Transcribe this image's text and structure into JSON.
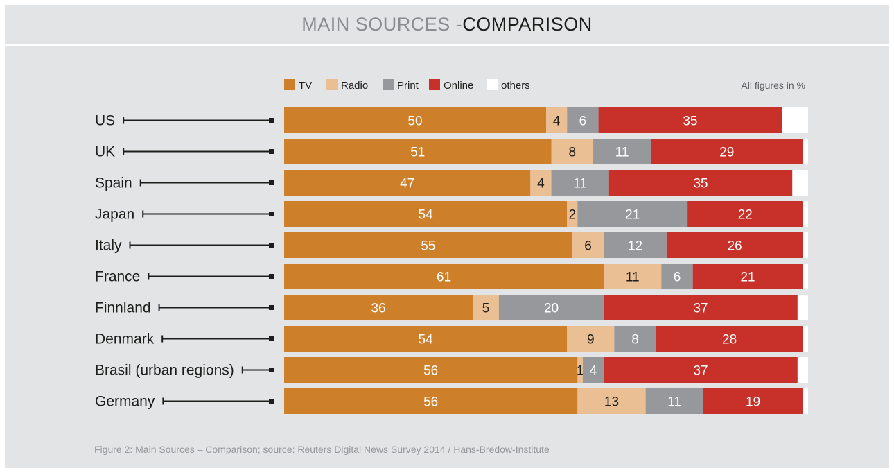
{
  "header": {
    "title_part1": "MAIN SOURCES - ",
    "title_part2": "COMPARISON"
  },
  "caption": "Figure 2: Main Sources – Comparison; source: Reuters Digital News Survey 2014 / Hans-Bredow-Institute",
  "chart_data": {
    "type": "bar",
    "orientation": "horizontal",
    "stacked": true,
    "note": "All figures in %",
    "legend_position": "top",
    "xlim": [
      0,
      100
    ],
    "categories": [
      "US",
      "UK",
      "Spain",
      "Japan",
      "Italy",
      "France",
      "Finnland",
      "Denmark",
      "Brasil (urban regions)",
      "Germany"
    ],
    "series": [
      {
        "name": "TV",
        "color": "#cd7f29",
        "values": [
          50,
          51,
          47,
          54,
          55,
          61,
          36,
          54,
          56,
          56
        ]
      },
      {
        "name": "Radio",
        "color": "#eabf93",
        "values": [
          4,
          8,
          4,
          2,
          6,
          11,
          5,
          9,
          1,
          13
        ]
      },
      {
        "name": "Print",
        "color": "#97989b",
        "values": [
          6,
          11,
          11,
          21,
          12,
          6,
          20,
          8,
          4,
          11
        ]
      },
      {
        "name": "Online",
        "color": "#c8312a",
        "values": [
          35,
          29,
          35,
          22,
          26,
          21,
          37,
          28,
          37,
          19
        ]
      },
      {
        "name": "others",
        "color": "#ffffff",
        "values": [
          5,
          1,
          3,
          1,
          1,
          1,
          2,
          1,
          2,
          1
        ]
      }
    ]
  }
}
